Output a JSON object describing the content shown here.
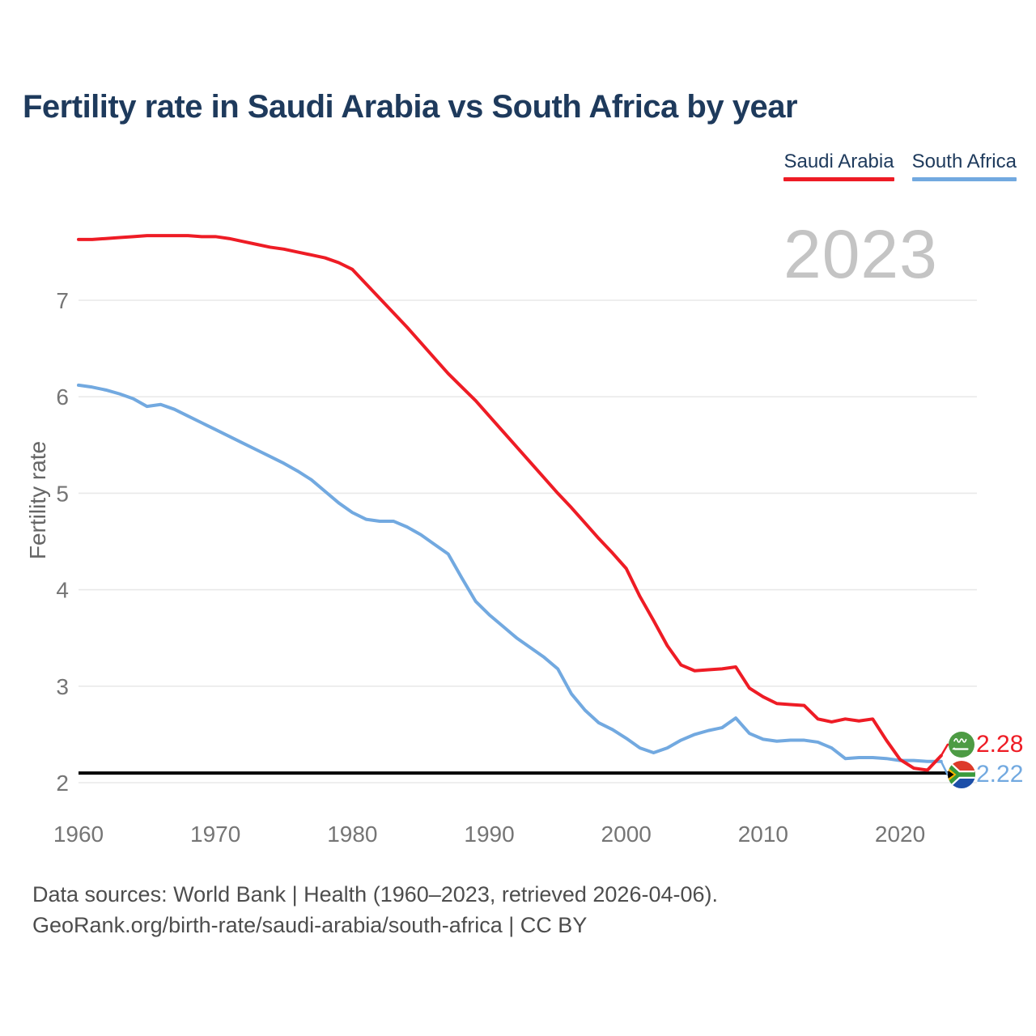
{
  "title": "Fertility rate in Saudi Arabia vs South Africa by year",
  "watermark_year": "2023",
  "y_axis_title": "Fertility rate",
  "legend": [
    {
      "label": "Saudi Arabia",
      "color": "#ee1c25"
    },
    {
      "label": "South Africa",
      "color": "#72a9e0"
    }
  ],
  "end_labels": {
    "saudi_arabia": "2.28",
    "south_africa": "2.22"
  },
  "footer": {
    "line1": "Data sources: World Bank | Health (1960–2023, retrieved 2026-04-06).",
    "line2": "GeoRank.org/birth-rate/saudi-arabia/south-africa | CC BY"
  },
  "colors": {
    "saudi_line": "#ee1c25",
    "south_africa_line": "#72a9e0",
    "title_navy": "#1e3a5c",
    "tick_gray": "#757575",
    "gridline": "#e9e9e9",
    "reference_line": "#000000",
    "watermark_gray": "#c4c4c4",
    "footer_gray": "#4d4d4d"
  },
  "chart_data": {
    "type": "line",
    "title": "Fertility rate in Saudi Arabia vs South Africa by year",
    "xlabel": "",
    "ylabel": "Fertility rate",
    "grid": true,
    "legend_position": "top-right",
    "x_range": [
      1960,
      2023
    ],
    "y_range": [
      2,
      7
    ],
    "x_ticks": [
      1960,
      1970,
      1980,
      1990,
      2000,
      2010,
      2020
    ],
    "y_ticks": [
      2,
      3,
      4,
      5,
      6,
      7
    ],
    "reference_line": 2.1,
    "x": [
      1960,
      1961,
      1962,
      1963,
      1964,
      1965,
      1966,
      1967,
      1968,
      1969,
      1970,
      1971,
      1972,
      1973,
      1974,
      1975,
      1976,
      1977,
      1978,
      1979,
      1980,
      1981,
      1982,
      1983,
      1984,
      1985,
      1986,
      1987,
      1988,
      1989,
      1990,
      1991,
      1992,
      1993,
      1994,
      1995,
      1996,
      1997,
      1998,
      1999,
      2000,
      2001,
      2002,
      2003,
      2004,
      2005,
      2006,
      2007,
      2008,
      2009,
      2010,
      2011,
      2012,
      2013,
      2014,
      2015,
      2016,
      2017,
      2018,
      2019,
      2020,
      2021,
      2022,
      2023
    ],
    "series": [
      {
        "name": "Saudi Arabia",
        "color": "#ee1c25",
        "end_value": 2.28,
        "values": [
          7.63,
          7.63,
          7.64,
          7.65,
          7.66,
          7.67,
          7.67,
          7.67,
          7.67,
          7.66,
          7.66,
          7.64,
          7.61,
          7.58,
          7.55,
          7.53,
          7.5,
          7.47,
          7.44,
          7.39,
          7.32,
          7.17,
          7.02,
          6.87,
          6.72,
          6.56,
          6.4,
          6.24,
          6.1,
          5.96,
          5.8,
          5.64,
          5.48,
          5.32,
          5.16,
          5.0,
          4.85,
          4.69,
          4.53,
          4.38,
          4.22,
          3.93,
          3.68,
          3.42,
          3.22,
          3.16,
          3.17,
          3.18,
          3.2,
          2.98,
          2.89,
          2.82,
          2.81,
          2.8,
          2.66,
          2.63,
          2.66,
          2.64,
          2.66,
          2.44,
          2.24,
          2.15,
          2.13,
          2.28
        ]
      },
      {
        "name": "South Africa",
        "color": "#72a9e0",
        "end_value": 2.22,
        "values": [
          6.12,
          6.1,
          6.07,
          6.03,
          5.98,
          5.9,
          5.92,
          5.87,
          5.8,
          5.73,
          5.66,
          5.59,
          5.52,
          5.45,
          5.38,
          5.31,
          5.23,
          5.14,
          5.02,
          4.9,
          4.8,
          4.73,
          4.71,
          4.71,
          4.65,
          4.57,
          4.47,
          4.37,
          4.12,
          3.88,
          3.74,
          3.62,
          3.5,
          3.4,
          3.3,
          3.18,
          2.92,
          2.75,
          2.62,
          2.55,
          2.46,
          2.36,
          2.31,
          2.36,
          2.44,
          2.5,
          2.54,
          2.57,
          2.67,
          2.51,
          2.45,
          2.43,
          2.44,
          2.44,
          2.42,
          2.36,
          2.25,
          2.26,
          2.26,
          2.25,
          2.23,
          2.23,
          2.22,
          2.22
        ]
      }
    ]
  }
}
